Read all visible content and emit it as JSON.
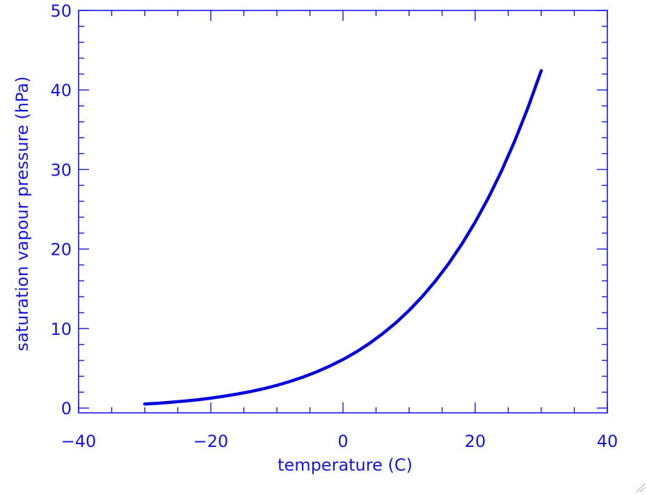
{
  "chart_data": {
    "type": "line",
    "title": "",
    "xlabel": "temperature (C)",
    "ylabel": "saturation vapour pressure (hPa)",
    "xlim": [
      -40,
      40
    ],
    "ylim": [
      0,
      50
    ],
    "x_ticks": [
      -40,
      -20,
      0,
      20,
      40
    ],
    "y_ticks": [
      0,
      10,
      20,
      30,
      40,
      50
    ],
    "x_tick_labels": [
      "−40",
      "−20",
      "0",
      "20",
      "40"
    ],
    "y_tick_labels": [
      "0",
      "10",
      "20",
      "30",
      "40",
      "50"
    ],
    "x_minor_step": 5,
    "y_minor_step": 2,
    "grid": false,
    "legend": "none",
    "colors": {
      "axes": "#1414e6",
      "line": "#0000dd"
    },
    "series": [
      {
        "x": [
          -30,
          -28,
          -26,
          -24,
          -22,
          -20,
          -18,
          -16,
          -14,
          -12,
          -10,
          -8,
          -6,
          -4,
          -2,
          0,
          2,
          4,
          6,
          8,
          10,
          12,
          14,
          16,
          18,
          20,
          22,
          24,
          26,
          28,
          30
        ],
        "values": [
          0.51,
          0.61,
          0.74,
          0.88,
          1.05,
          1.25,
          1.49,
          1.76,
          2.08,
          2.44,
          2.86,
          3.35,
          3.91,
          4.55,
          5.28,
          6.11,
          7.05,
          8.13,
          9.35,
          10.72,
          12.28,
          14.03,
          15.99,
          18.18,
          20.64,
          23.38,
          26.43,
          29.83,
          33.61,
          37.8,
          42.43
        ]
      }
    ]
  }
}
